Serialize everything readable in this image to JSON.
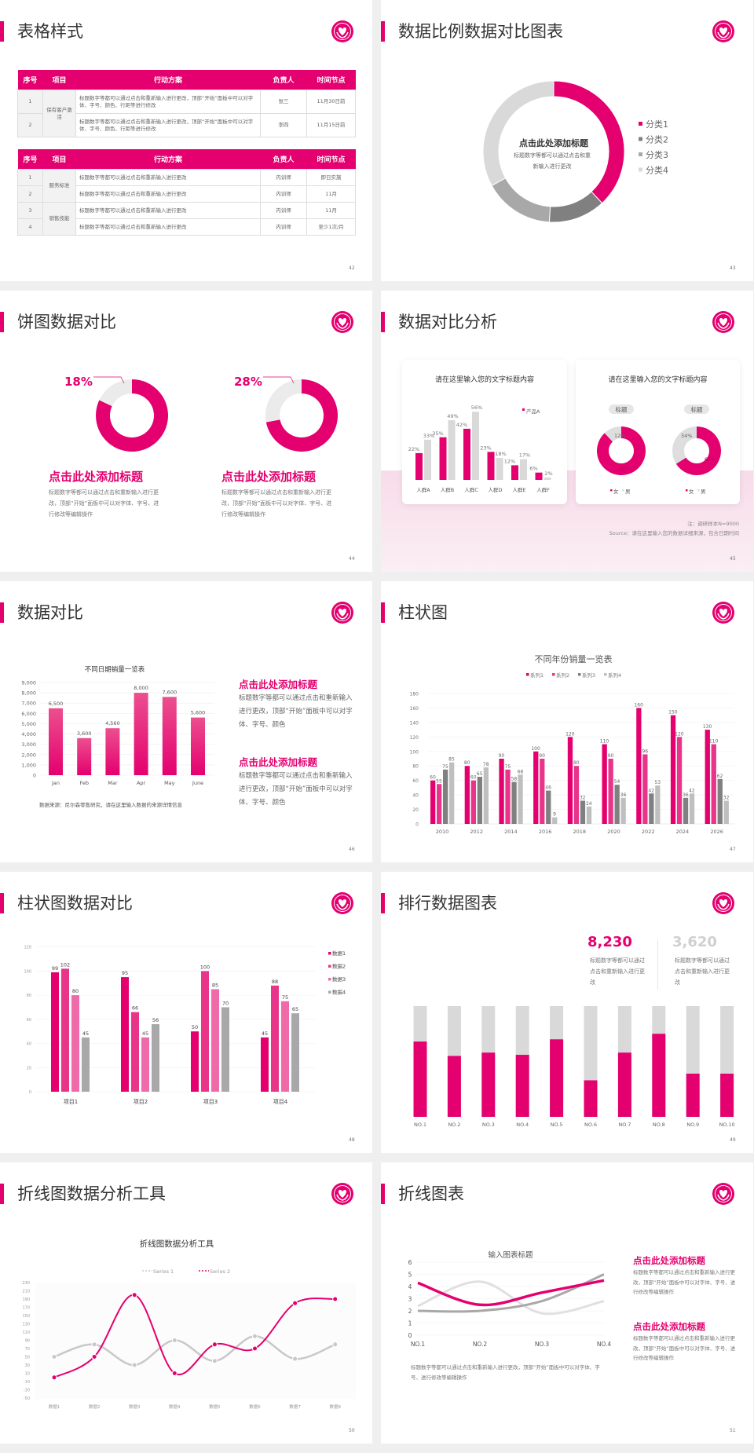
{
  "theme": {
    "accent": "#e4006f",
    "accent2": "#e8358a",
    "accent3": "#ee6aa8",
    "gray_dark": "#808080",
    "gray_mid": "#a8a8a8",
    "gray_light": "#d9d9d9",
    "pink_bg": "#f9e1ec"
  },
  "logo_icon": "heart-hands-emblem",
  "slides": {
    "s42": {
      "title": "表格样式",
      "page": "42",
      "headers": [
        "序号",
        "项目",
        "行动方案",
        "负责人",
        "时间节点"
      ],
      "table1": {
        "group": "保有客户激活",
        "rows": [
          {
            "no": "1",
            "plan": "标题数字等都可以通过点击和重新输入进行更改，顶部“开始”面板中可以对字体、字号、颜色、行距等进行修改",
            "owner": "张三",
            "time": "11月30日前"
          },
          {
            "no": "2",
            "plan": "标题数字等都可以通过点击和重新输入进行更改，顶部“开始”面板中可以对字体、字号、颜色、行距等进行修改",
            "owner": "李四",
            "time": "11月15日前"
          }
        ]
      },
      "table2": {
        "groups": [
          "服务标准",
          "销售技能"
        ],
        "rows": [
          {
            "no": "1",
            "plan": "标题数字等都可以通过点击和重新输入进行更改",
            "owner": "内训师",
            "time": "即日实施"
          },
          {
            "no": "2",
            "plan": "标题数字等都可以通过点击和重新输入进行更改",
            "owner": "内训师",
            "time": "11月"
          },
          {
            "no": "3",
            "plan": "标题数字等都可以通过点击和重新输入进行更改",
            "owner": "内训师",
            "time": "11月"
          },
          {
            "no": "4",
            "plan": "标题数字等都可以通过点击和重新输入进行更改",
            "owner": "内训师",
            "time": "至少1次/月"
          }
        ]
      }
    },
    "s43": {
      "title": "数据比例数据对比图表",
      "page": "43",
      "center_heading": "点击此处添加标题",
      "center_text": "标题数字等都可以通过点击和重新输入进行更改",
      "chart": {
        "type": "pie",
        "categories": [
          "分类1",
          "分类2",
          "分类3",
          "分类4"
        ],
        "values": [
          38,
          13,
          16,
          33
        ],
        "colors": [
          "#e4006f",
          "#808080",
          "#a8a8a8",
          "#d9d9d9"
        ],
        "legend": "right"
      }
    },
    "s44": {
      "title": "饼图数据对比",
      "page": "44",
      "items": [
        {
          "percent_label": "18%",
          "value": 18,
          "heading": "点击此处添加标题",
          "text": "标题数字等都可以通过点击和重新输入进行更改，顶部“开始”面板中可以对字体、字号、进行修改等编辑操作"
        },
        {
          "percent_label": "28%",
          "value": 28,
          "heading": "点击此处添加标题",
          "text": "标题数字等都可以通过点击和重新输入进行更改，顶部“开始”面板中可以对字体、字号、进行修改等编辑操作"
        }
      ]
    },
    "s45": {
      "title": "数据对比分析",
      "page": "45",
      "card1_title": "请在这里输入您的文字标题内容",
      "card2_title": "请在这里输入您的文字标题内容",
      "bar_chart": {
        "type": "bar",
        "categories": [
          "人群A",
          "人群B",
          "人群C",
          "人群D",
          "人群E",
          "人群F"
        ],
        "series": [
          {
            "name": "产品A",
            "values": [
              22,
              35,
              42,
              23,
              12,
              6
            ]
          },
          {
            "values": [
              33,
              49,
              56,
              18,
              17,
              2
            ]
          }
        ],
        "unit": "%"
      },
      "donuts": [
        {
          "label": "标题",
          "female": 88,
          "male": 12,
          "female_label": "88%",
          "male_label": "12%"
        },
        {
          "label": "标题",
          "female": 66,
          "male": 34,
          "female_label": "66%",
          "male_label": "34%"
        }
      ],
      "donut_legend": [
        "女",
        "男"
      ],
      "note": "注：调研样本N=9000",
      "source": "Source：请在这里输入您的数据详细来源，包含日期时间"
    },
    "s46": {
      "title": "数据对比",
      "page": "46",
      "chart": {
        "type": "bar",
        "title": "不同日期销量一览表",
        "categories": [
          "Jan",
          "Feb",
          "Mar",
          "Apr",
          "May",
          "June"
        ],
        "values": [
          6500,
          3600,
          4560,
          8000,
          7600,
          5600
        ],
        "value_labels": [
          "6,500",
          "3,600",
          "4,560",
          "8,000",
          "7,600",
          "5,600"
        ],
        "ylim": [
          0,
          9000
        ],
        "yticks": [
          "0",
          "1,000",
          "2,000",
          "3,000",
          "4,000",
          "5,000",
          "6,000",
          "7,000",
          "8,000",
          "9,000"
        ],
        "grid": true
      },
      "source": "数据来源：尼尔森零售研究，请在这里输入数据的来源详情信息",
      "blocks": [
        {
          "heading": "点击此处添加标题",
          "text": "标题数字等都可以通过点击和重新输入进行更改，顶部“开始”面板中可以对字体、字号、颜色"
        },
        {
          "heading": "点击此处添加标题",
          "text": "标题数字等都可以通过点击和重新输入进行更改，顶部“开始”面板中可以对字体、字号、颜色"
        }
      ]
    },
    "s47": {
      "title": "柱状图",
      "page": "47",
      "chart": {
        "type": "bar",
        "title": "不同年份销量一览表",
        "categories": [
          "2010",
          "2012",
          "2014",
          "2016",
          "2018",
          "2020",
          "2022",
          "2024",
          "2026"
        ],
        "series": [
          {
            "name": "系列1",
            "values": [
              60,
              80,
              90,
              100,
              120,
              110,
              160,
              150,
              130
            ]
          },
          {
            "name": "系列2",
            "values": [
              55,
              60,
              75,
              90,
              80,
              90,
              96,
              120,
              110
            ]
          },
          {
            "name": "系列3",
            "values": [
              75,
              65,
              58,
              46,
              32,
              54,
              42,
              36,
              62
            ]
          },
          {
            "name": "系列4",
            "values": [
              85,
              78,
              68,
              9,
              24,
              36,
              53,
              42,
              32
            ]
          }
        ],
        "colors": [
          "#e4006f",
          "#e8358a",
          "#808080",
          "#bfbfbf"
        ],
        "ylim": [
          0,
          180
        ],
        "ystep": 20,
        "legend": "top",
        "grid": true
      }
    },
    "s48": {
      "title": "柱状图数据对比",
      "page": "48",
      "chart": {
        "type": "bar",
        "categories": [
          "项目1",
          "项目2",
          "项目3",
          "项目4"
        ],
        "series": [
          {
            "name": "数据1",
            "values": [
              99,
              95,
              50,
              45
            ]
          },
          {
            "name": "数据2",
            "values": [
              102,
              66,
              100,
              88
            ]
          },
          {
            "name": "数据3",
            "values": [
              80,
              45,
              85,
              75
            ]
          },
          {
            "name": "数据4",
            "values": [
              45,
              56,
              70,
              65
            ]
          }
        ],
        "colors": [
          "#e4006f",
          "#e8358a",
          "#ee6aa8",
          "#a8a8a8"
        ],
        "ylim": [
          0,
          120
        ],
        "ystep": 20,
        "legend": "right",
        "grid": true
      }
    },
    "s49": {
      "title": "排行数据图表",
      "page": "49",
      "stats": [
        {
          "value": "8,230",
          "text": "标题数字等都可以通过点击和重新输入进行更改"
        },
        {
          "value": "3,620",
          "text": "标题数字等都可以通过点击和重新输入进行更改"
        }
      ],
      "chart": {
        "type": "bar",
        "categories": [
          "NO.1",
          "NO.2",
          "NO.3",
          "NO.4",
          "NO.5",
          "NO.6",
          "NO.7",
          "NO.8",
          "NO.9",
          "NO.10"
        ],
        "values": [
          68,
          55,
          58,
          56,
          70,
          33,
          58,
          75,
          39,
          39
        ],
        "unit": "% of track"
      }
    },
    "s50": {
      "title": "折线图数据分析工具",
      "page": "50",
      "chart": {
        "type": "line",
        "title": "折线图数据分析工具",
        "categories": [
          "数据1",
          "数据2",
          "数据3",
          "数据4",
          "数据5",
          "数据6",
          "数据7",
          "数据8"
        ],
        "series": [
          {
            "name": "Series 1",
            "values": [
              50,
              80,
              30,
              90,
              40,
              100,
              45,
              80
            ],
            "color": "#c8c8c8"
          },
          {
            "name": "Series 2",
            "values": [
              0,
              50,
              200,
              10,
              80,
              70,
              180,
              190
            ],
            "color": "#e4006f"
          }
        ],
        "ylim": [
          -50,
          230
        ],
        "ystep": 20,
        "legend": "top",
        "smooth": true
      }
    },
    "s51": {
      "title": "折线图表",
      "page": "51",
      "chart": {
        "type": "line",
        "title": "输入图表标题",
        "categories": [
          "NO.1",
          "NO.2",
          "NO.3",
          "NO.4"
        ],
        "series": [
          {
            "values": [
              4.3,
              2.5,
              3.5,
              4.5
            ],
            "color": "#e4006f"
          },
          {
            "values": [
              2.4,
              4.4,
              1.8,
              2.8
            ],
            "color": "#e0e0e0"
          },
          {
            "values": [
              2.0,
              2.0,
              2.8,
              5.0
            ],
            "color": "#a8a8a8"
          }
        ],
        "ylim": [
          0,
          6
        ],
        "ystep": 1,
        "smooth": true
      },
      "caption": "标题数字等都可以通过点击和重新输入进行更改，顶部“开始”面板中可以对字体、字号、进行修改等编辑操作",
      "blocks": [
        {
          "heading": "点击此处添加标题",
          "text": "标题数字等都可以通过点击和重新输入进行更改，顶部“开始”面板中可以对字体、字号、进行修改等编辑操作"
        },
        {
          "heading": "点击此处添加标题",
          "text": "标题数字等都可以通过点击和重新输入进行更改，顶部“开始”面板中可以对字体、字号、进行修改等编辑操作"
        }
      ]
    }
  }
}
